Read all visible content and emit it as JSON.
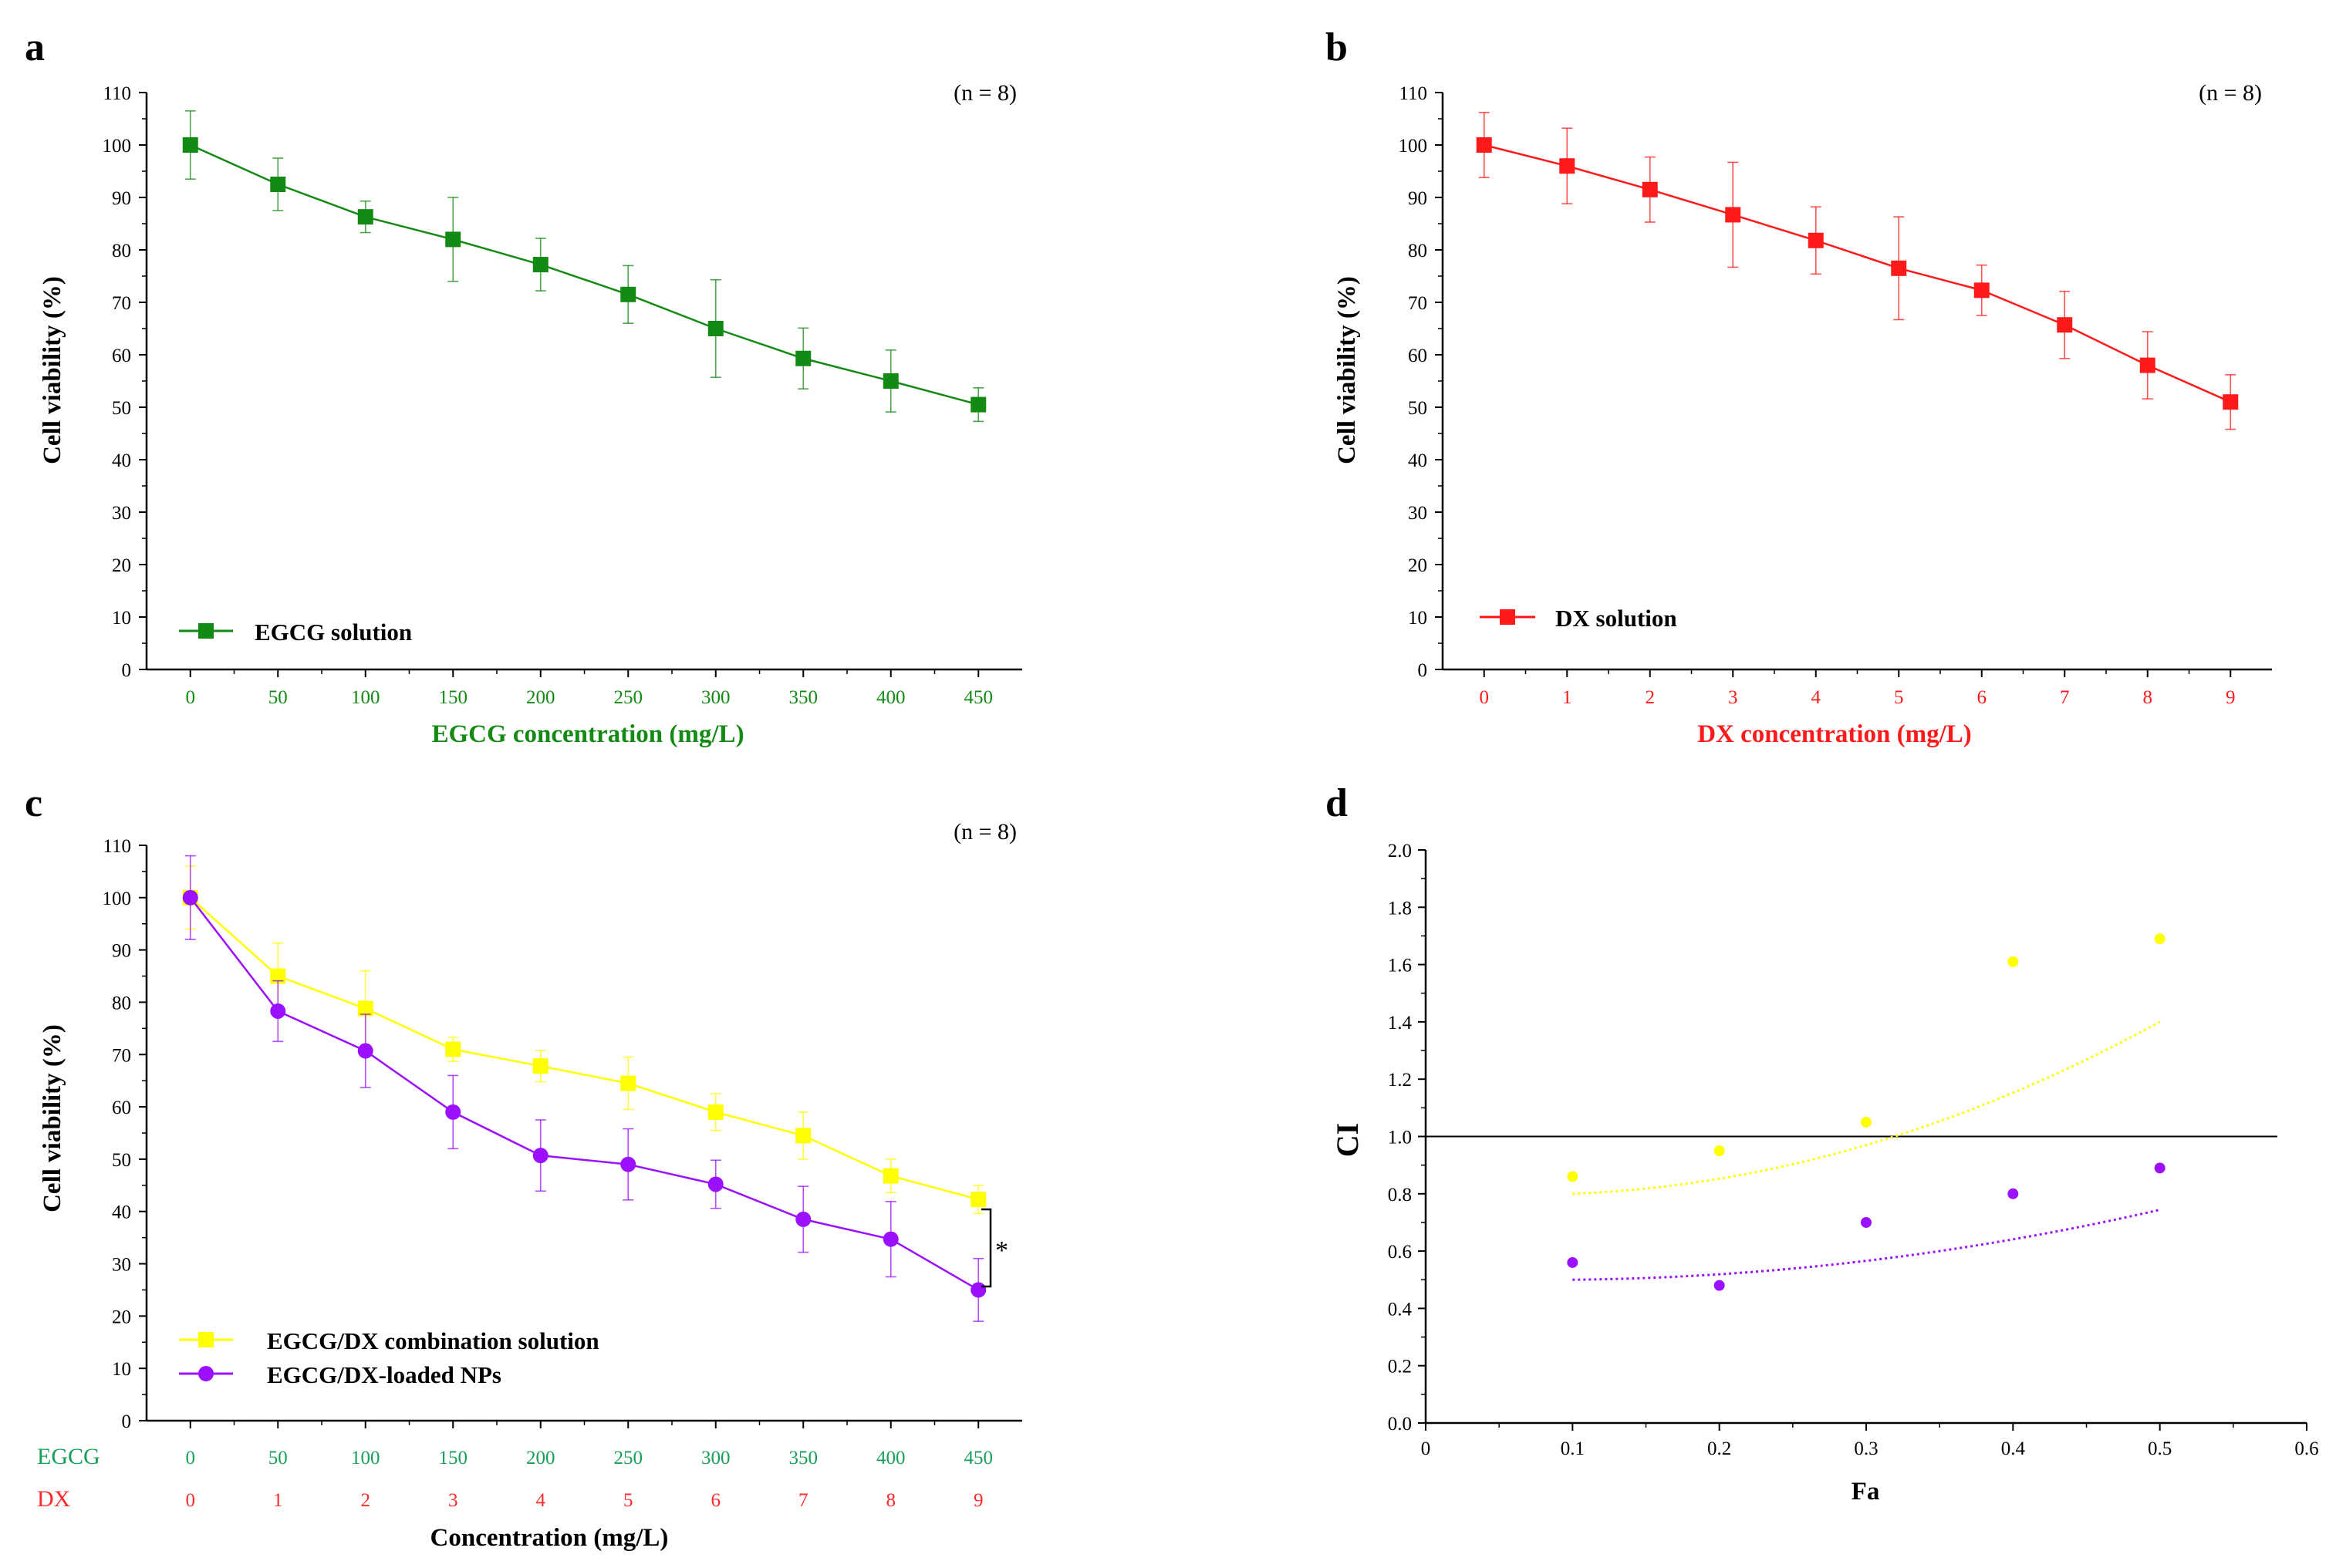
{
  "colors": {
    "green": "#138a13",
    "red": "#ff1a1a",
    "yellow": "#ffff00",
    "purple": "#9b10ff",
    "axis": "#000000",
    "egcg_label": "#18a05a",
    "dx_label": "#ff2a2a"
  },
  "chart_data": [
    {
      "id": "a",
      "panel_label": "a",
      "type": "line",
      "n_label": "(n = 8)",
      "ylabel": "Cell viability (%)",
      "xlabel": "EGCG concentration (mg/L)",
      "ylim": [
        0,
        110
      ],
      "yticks": [
        0,
        10,
        20,
        30,
        40,
        50,
        60,
        70,
        80,
        90,
        100,
        110
      ],
      "xlim": [
        -25,
        475
      ],
      "xticks": [
        0,
        50,
        100,
        150,
        200,
        250,
        300,
        350,
        400,
        450
      ],
      "series": [
        {
          "name": "EGCG solution",
          "color_key": "green",
          "marker": "square",
          "x": [
            0,
            50,
            100,
            150,
            200,
            250,
            300,
            350,
            400,
            450
          ],
          "values": [
            100,
            92.5,
            86.3,
            82,
            77.2,
            71.5,
            65,
            59.3,
            55,
            50.5
          ],
          "errors": [
            6.5,
            5,
            3,
            8,
            5,
            5.5,
            9.3,
            5.8,
            5.9,
            3.2
          ]
        }
      ]
    },
    {
      "id": "b",
      "panel_label": "b",
      "type": "line",
      "n_label": "(n = 8)",
      "ylabel": "Cell viability (%)",
      "xlabel": "DX concentration (mg/L)",
      "ylim": [
        0,
        110
      ],
      "yticks": [
        0,
        10,
        20,
        30,
        40,
        50,
        60,
        70,
        80,
        90,
        100,
        110
      ],
      "xlim": [
        -0.5,
        9.5
      ],
      "xticks": [
        0,
        1,
        2,
        3,
        4,
        5,
        6,
        7,
        8,
        9
      ],
      "series": [
        {
          "name": "DX solution",
          "color_key": "red",
          "marker": "square",
          "x": [
            0,
            1,
            2,
            3,
            4,
            5,
            6,
            7,
            8,
            9
          ],
          "values": [
            100,
            96,
            91.5,
            86.7,
            81.8,
            76.5,
            72.3,
            65.7,
            58,
            51
          ],
          "errors": [
            6.2,
            7.2,
            6.2,
            10,
            6.4,
            9.8,
            4.8,
            6.4,
            6.4,
            5.2
          ]
        }
      ]
    },
    {
      "id": "c",
      "panel_label": "c",
      "type": "line",
      "n_label": "(n = 8)",
      "ylabel": "Cell viability (%)",
      "xlabel": "Concentration (mg/L)",
      "ylim": [
        0,
        110
      ],
      "yticks": [
        0,
        10,
        20,
        30,
        40,
        50,
        60,
        70,
        80,
        90,
        100,
        110
      ],
      "xlim": [
        -25,
        475
      ],
      "xticks": [
        0,
        50,
        100,
        150,
        200,
        250,
        300,
        350,
        400,
        450
      ],
      "row_labels": [
        {
          "name": "EGCG",
          "color_key": "egcg_label",
          "ticks": [
            "0",
            "50",
            "100",
            "150",
            "200",
            "250",
            "300",
            "350",
            "400",
            "450"
          ]
        },
        {
          "name": "DX",
          "color_key": "dx_label",
          "ticks": [
            "0",
            "1",
            "2",
            "3",
            "4",
            "5",
            "6",
            "7",
            "8",
            "9"
          ]
        }
      ],
      "significance": "*",
      "series": [
        {
          "name": "EGCG/DX combination solution",
          "color_key": "yellow",
          "marker": "square",
          "x": [
            0,
            50,
            100,
            150,
            200,
            250,
            300,
            350,
            400,
            450
          ],
          "values": [
            100,
            85,
            78.8,
            71,
            67.8,
            64.5,
            59,
            54.5,
            46.8,
            42.3
          ],
          "errors": [
            6,
            6.3,
            7.2,
            2.3,
            3,
            5,
            3.5,
            4.5,
            3.2,
            2.7
          ]
        },
        {
          "name": "EGCG/DX-loaded NPs",
          "color_key": "purple",
          "marker": "circle",
          "x": [
            0,
            50,
            100,
            150,
            200,
            250,
            300,
            350,
            400,
            450
          ],
          "values": [
            100,
            78.3,
            70.7,
            59,
            50.7,
            49,
            45.2,
            38.5,
            34.7,
            25
          ],
          "errors": [
            8,
            5.8,
            7,
            7,
            6.8,
            6.8,
            4.6,
            6.3,
            7.2,
            6
          ]
        }
      ]
    },
    {
      "id": "d",
      "panel_label": "d",
      "type": "scatter",
      "ylabel": "CI",
      "xlabel": "Fa",
      "ylim": [
        0,
        2
      ],
      "yticks": [
        0,
        0.2,
        0.4,
        0.6,
        0.8,
        1.0,
        1.2,
        1.4,
        1.6,
        1.8,
        2.0
      ],
      "ytick_labels": [
        "0.0",
        "0.2",
        "0.4",
        "0.6",
        "0.8",
        "1.0",
        "1.2",
        "1.4",
        "1.6",
        "1.8",
        "2.0"
      ],
      "xlim": [
        0,
        0.6
      ],
      "xticks": [
        0,
        0.1,
        0.2,
        0.3,
        0.4,
        0.5,
        0.6
      ],
      "xtick_labels": [
        "0",
        "0.1",
        "0.2",
        "0.3",
        "0.4",
        "0.5",
        "0.6"
      ],
      "reference_line": {
        "y": 1.0,
        "x_end": 0.58
      },
      "series": [
        {
          "name": "EGCG/DX combination solution",
          "color_key": "yellow",
          "x": [
            0.1,
            0.2,
            0.3,
            0.4,
            0.5
          ],
          "values": [
            0.86,
            0.95,
            1.05,
            1.61,
            1.69
          ],
          "trend": {
            "x_range": [
              0.1,
              0.5
            ],
            "coef": [
              0.8,
              0.2,
              3.25
            ]
          }
        },
        {
          "name": "EGCG/DX-loaded NPs",
          "color_key": "purple",
          "x": [
            0.1,
            0.2,
            0.3,
            0.4,
            0.5
          ],
          "values": [
            0.56,
            0.48,
            0.7,
            0.8,
            0.89
          ],
          "trend": {
            "x_range": [
              0.1,
              0.5
            ],
            "coef": [
              0.5,
              0.05,
              1.4
            ]
          }
        }
      ]
    }
  ]
}
